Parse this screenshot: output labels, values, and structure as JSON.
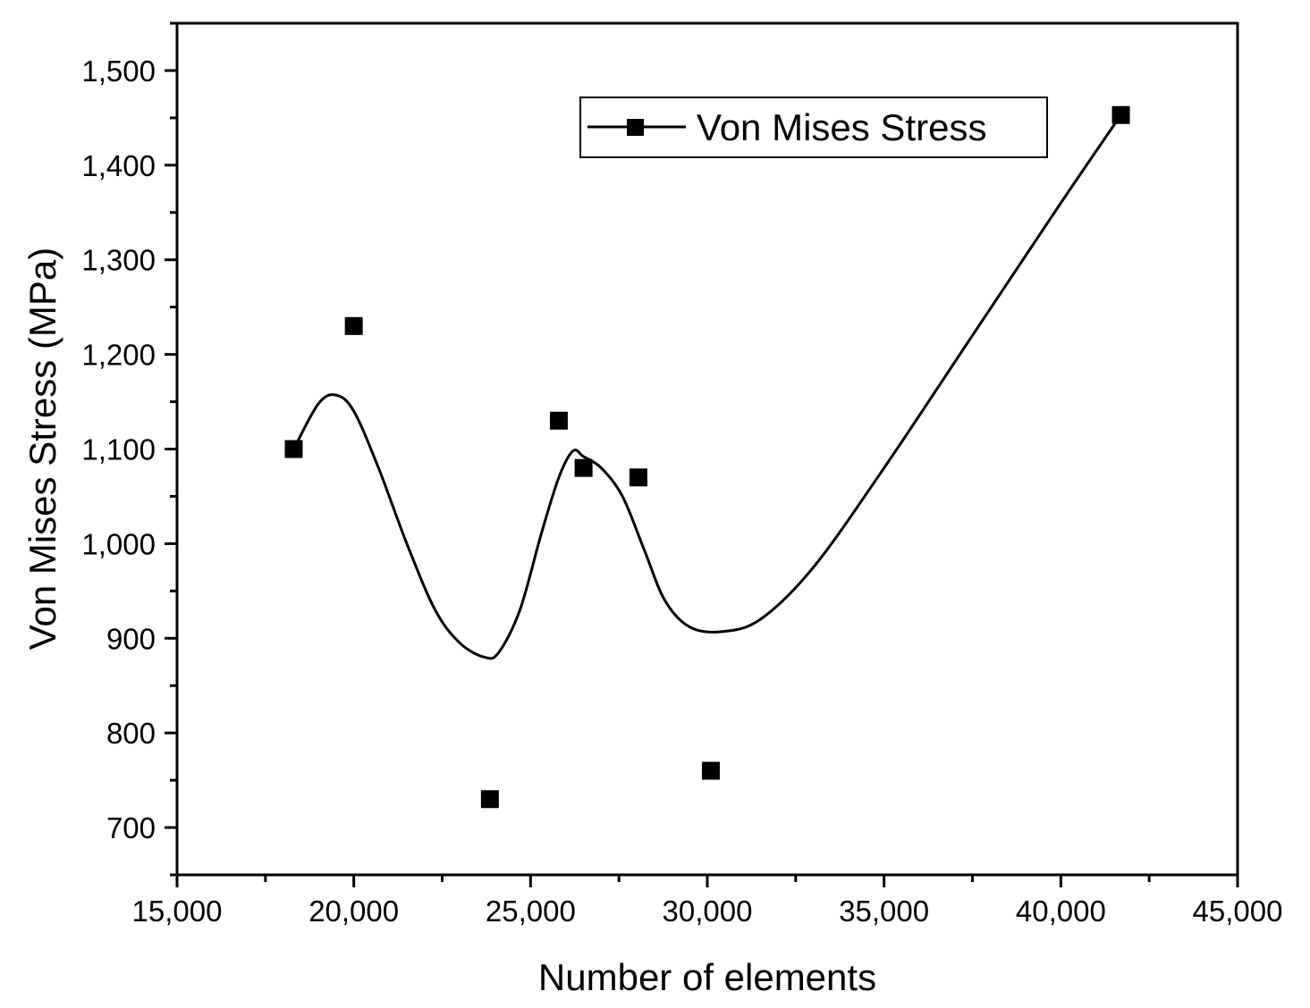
{
  "chart_data": {
    "type": "scatter",
    "title": "",
    "xlabel": "Number of elements",
    "ylabel": "Von Mises Stress (MPa)",
    "xlim": [
      15000,
      45000
    ],
    "ylim": [
      650,
      1550
    ],
    "x_ticks": [
      15000,
      20000,
      25000,
      30000,
      35000,
      40000,
      45000
    ],
    "x_tick_labels": [
      "15,000",
      "20,000",
      "25,000",
      "30,000",
      "35,000",
      "40,000",
      "45,000"
    ],
    "y_ticks": [
      700,
      800,
      900,
      1000,
      1100,
      1200,
      1300,
      1400,
      1500
    ],
    "y_tick_labels": [
      "700",
      "800",
      "900",
      "1,000",
      "1,100",
      "1,200",
      "1,300",
      "1,400",
      "1,500"
    ],
    "grid": false,
    "legend_position": "top-right",
    "series": [
      {
        "name": "Von Mises Stress",
        "marker": "square",
        "color": "#000000",
        "points": [
          {
            "x": 18300,
            "y": 1100
          },
          {
            "x": 20000,
            "y": 1230
          },
          {
            "x": 23850,
            "y": 730
          },
          {
            "x": 25800,
            "y": 1130
          },
          {
            "x": 26500,
            "y": 1080
          },
          {
            "x": 28050,
            "y": 1070
          },
          {
            "x": 30100,
            "y": 760
          },
          {
            "x": 41700,
            "y": 1453
          }
        ],
        "curve": [
          {
            "x": 18300,
            "y": 1100
          },
          {
            "x": 19000,
            "y": 1148
          },
          {
            "x": 19500,
            "y": 1157
          },
          {
            "x": 20000,
            "y": 1140
          },
          {
            "x": 20700,
            "y": 1080
          },
          {
            "x": 21500,
            "y": 1000
          },
          {
            "x": 22300,
            "y": 930
          },
          {
            "x": 23000,
            "y": 895
          },
          {
            "x": 23700,
            "y": 880
          },
          {
            "x": 24100,
            "y": 885
          },
          {
            "x": 24700,
            "y": 930
          },
          {
            "x": 25300,
            "y": 1010
          },
          {
            "x": 25800,
            "y": 1070
          },
          {
            "x": 26200,
            "y": 1098
          },
          {
            "x": 26500,
            "y": 1092
          },
          {
            "x": 27000,
            "y": 1080
          },
          {
            "x": 27600,
            "y": 1050
          },
          {
            "x": 28200,
            "y": 995
          },
          {
            "x": 28800,
            "y": 940
          },
          {
            "x": 29500,
            "y": 912
          },
          {
            "x": 30400,
            "y": 907
          },
          {
            "x": 31500,
            "y": 920
          },
          {
            "x": 33000,
            "y": 975
          },
          {
            "x": 35000,
            "y": 1080
          },
          {
            "x": 37500,
            "y": 1220
          },
          {
            "x": 40000,
            "y": 1360
          },
          {
            "x": 41700,
            "y": 1453
          }
        ]
      }
    ]
  }
}
